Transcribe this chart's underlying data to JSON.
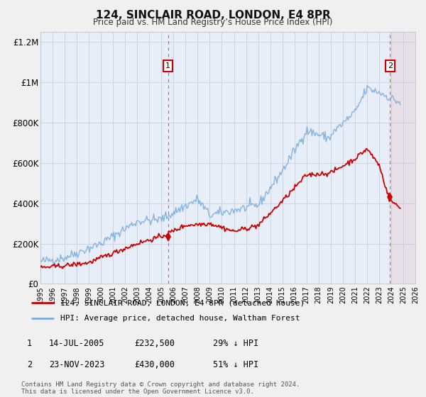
{
  "title": "124, SINCLAIR ROAD, LONDON, E4 8PR",
  "subtitle": "Price paid vs. HM Land Registry’s House Price Index (HPI)",
  "fig_bg_color": "#f0f0f0",
  "plot_bg_color": "#e8eef8",
  "grid_color": "#c0c8d8",
  "ylim": [
    0,
    1250000
  ],
  "xlim_start": 1995,
  "xlim_end": 2026,
  "sale1_date": 2005.54,
  "sale1_price": 232500,
  "sale2_date": 2023.9,
  "sale2_price": 430000,
  "red_color": "#cc0000",
  "blue_color": "#7aaddb",
  "hatch_color": "#ddbbbb",
  "legend_label1": "124, SINCLAIR ROAD, LONDON, E4 8PR (detached house)",
  "legend_label2": "HPI: Average price, detached house, Waltham Forest",
  "ann1_date": "14-JUL-2005",
  "ann1_price": "£232,500",
  "ann1_hpi": "29% ↓ HPI",
  "ann2_date": "23-NOV-2023",
  "ann2_price": "£430,000",
  "ann2_hpi": "51% ↓ HPI",
  "footer": "Contains HM Land Registry data © Crown copyright and database right 2024.\nThis data is licensed under the Open Government Licence v3.0.",
  "ytick_labels": [
    "£0",
    "£200K",
    "£400K",
    "£600K",
    "£800K",
    "£1M",
    "£1.2M"
  ],
  "ytick_values": [
    0,
    200000,
    400000,
    600000,
    800000,
    1000000,
    1200000
  ],
  "marker_size": 7
}
